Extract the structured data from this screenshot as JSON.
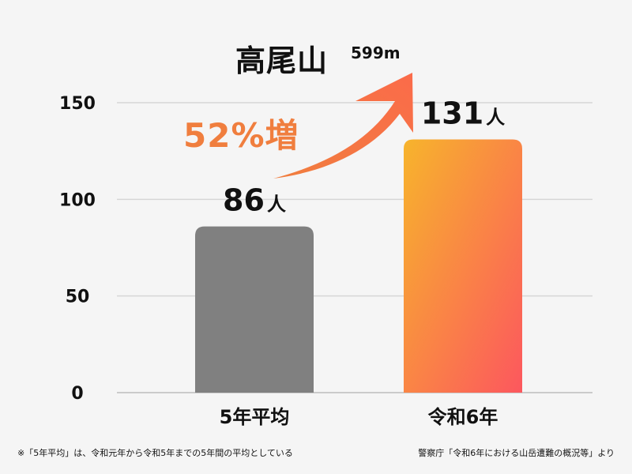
{
  "title": "高尾山",
  "subtitle": "599m",
  "increase_label": "52%増",
  "footnote": "※「5年平均」は、令和元年から令和5年までの5年間の平均としている",
  "source": "警察庁「令和6年における山岳遭難の概況等」より",
  "colors": {
    "bar_avg": "#808080",
    "bar_gradient_start": "#f7b42c",
    "bar_gradient_end": "#fc575e",
    "arrow_start": "#f07e3e",
    "arrow_end": "#fb6b4a"
  },
  "chart_data": {
    "type": "bar",
    "categories": [
      "5年平均",
      "令和6年"
    ],
    "values": [
      86,
      131
    ],
    "value_labels": [
      "86",
      "131"
    ],
    "unit": "人",
    "ylim": [
      0,
      150
    ],
    "yticks": [
      0,
      50,
      100,
      150
    ],
    "grid": true
  }
}
